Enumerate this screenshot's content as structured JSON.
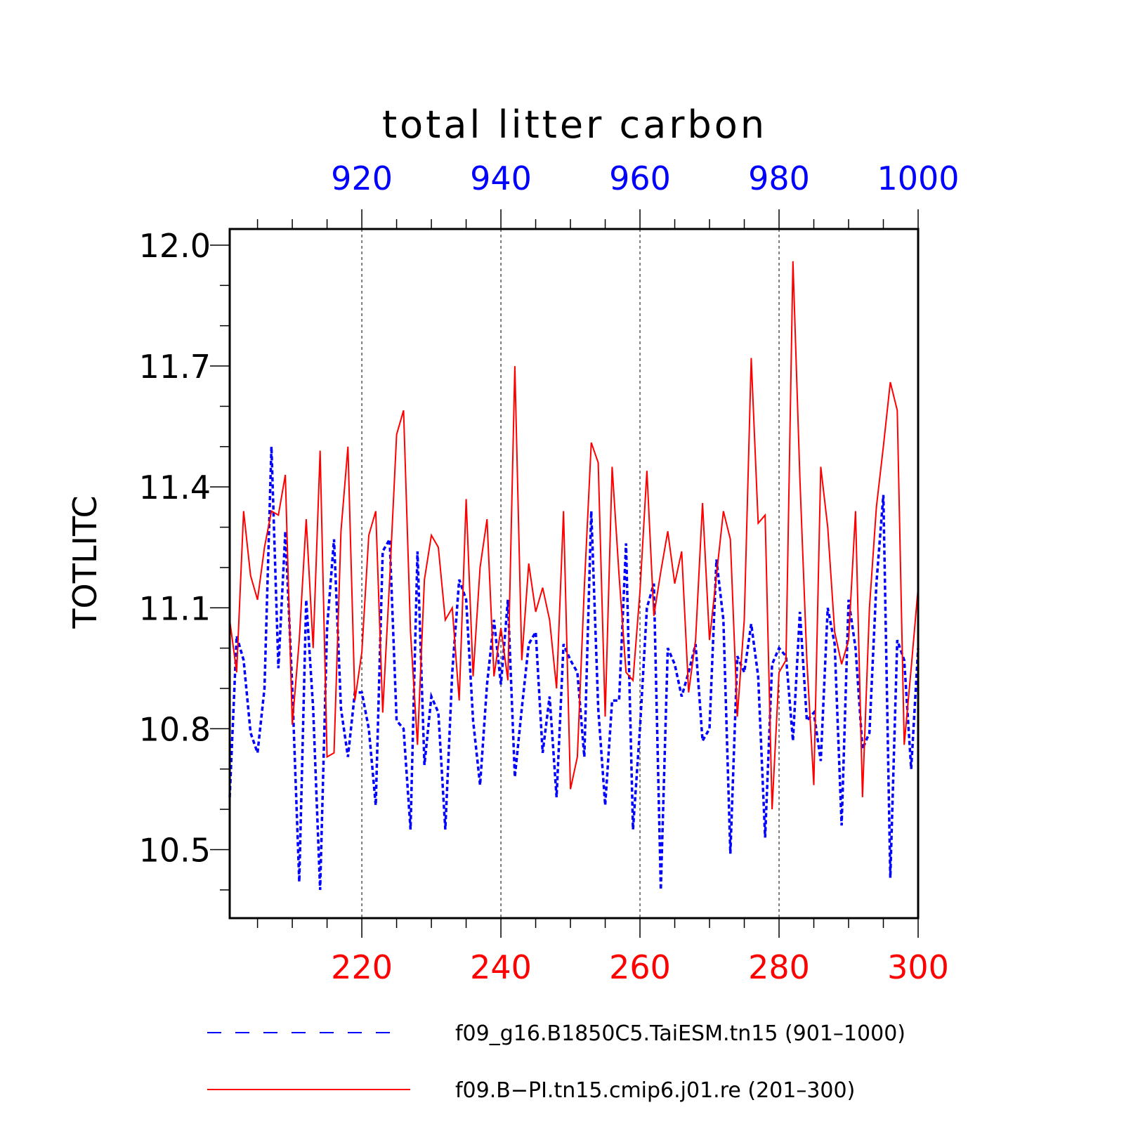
{
  "chart_data": {
    "type": "line",
    "title": "total litter carbon",
    "ylabel": "TOTLITC",
    "ylim": [
      10.33,
      12.04
    ],
    "y_ticks": [
      "10.5",
      "10.8",
      "11.1",
      "11.4",
      "11.7",
      "12.0"
    ],
    "y_tick_values": [
      10.5,
      10.8,
      11.1,
      11.4,
      11.7,
      12.0
    ],
    "x_bottom": {
      "range": [
        201,
        300
      ],
      "ticks": [
        "220",
        "240",
        "260",
        "280",
        "300"
      ],
      "tick_values": [
        220,
        240,
        260,
        280,
        300
      ],
      "color": "#ff0000"
    },
    "x_top": {
      "range": [
        901,
        1000
      ],
      "ticks": [
        "920",
        "940",
        "960",
        "980",
        "1000"
      ],
      "tick_values": [
        920,
        940,
        960,
        980,
        1000
      ],
      "color": "#0000ff"
    },
    "grid": "vertical dashed at major x ticks",
    "legend_position": "bottom",
    "series": [
      {
        "name": "f09_g16.B1850C5.TaiESM.tn15 (901–1000)",
        "color": "#0000ff",
        "style": "dashed",
        "axis": "top",
        "x_start": 901,
        "values": [
          10.63,
          11.03,
          10.97,
          10.79,
          10.74,
          10.9,
          11.5,
          10.95,
          11.29,
          10.9,
          10.42,
          11.12,
          10.85,
          10.4,
          11.05,
          11.27,
          10.85,
          10.73,
          10.89,
          10.89,
          10.8,
          10.61,
          11.24,
          11.27,
          10.82,
          10.8,
          10.55,
          11.24,
          10.71,
          10.88,
          10.84,
          10.55,
          10.94,
          11.17,
          11.12,
          10.82,
          10.66,
          10.91,
          11.07,
          10.91,
          11.12,
          10.68,
          10.85,
          11.01,
          11.04,
          10.74,
          10.88,
          10.63,
          11.01,
          10.97,
          10.94,
          10.73,
          11.34,
          10.85,
          10.61,
          10.87,
          10.87,
          11.26,
          10.55,
          10.8,
          11.1,
          11.16,
          10.4,
          11.0,
          10.96,
          10.88,
          10.94,
          11.01,
          10.77,
          10.8,
          11.22,
          11.07,
          10.49,
          10.98,
          10.94,
          11.06,
          10.93,
          10.53,
          10.96,
          11.0,
          10.98,
          10.77,
          11.09,
          10.82,
          10.84,
          10.72,
          11.1,
          11.01,
          10.56,
          11.12,
          11.0,
          10.75,
          10.79,
          11.16,
          11.38,
          10.43,
          11.02,
          10.97,
          10.7,
          11.0
        ]
      },
      {
        "name": "f09.B−PI.tn15.cmip6.j01.re (201–300)",
        "color": "#ff0000",
        "style": "solid",
        "axis": "bottom",
        "x_start": 201,
        "values": [
          11.07,
          10.94,
          11.34,
          11.18,
          11.12,
          11.25,
          11.34,
          11.33,
          11.43,
          10.81,
          11.02,
          11.32,
          11.0,
          11.49,
          10.73,
          10.74,
          11.29,
          11.5,
          10.87,
          10.99,
          11.28,
          11.34,
          10.84,
          11.17,
          11.53,
          11.59,
          11.04,
          10.76,
          11.17,
          11.28,
          11.25,
          11.07,
          11.1,
          10.87,
          11.37,
          10.93,
          11.2,
          11.32,
          10.93,
          11.05,
          10.92,
          11.7,
          10.97,
          11.21,
          11.09,
          11.15,
          11.07,
          10.9,
          11.34,
          10.65,
          10.73,
          11.15,
          11.51,
          11.46,
          10.83,
          11.45,
          11.18,
          10.94,
          10.92,
          11.14,
          11.44,
          11.08,
          11.19,
          11.29,
          11.16,
          11.24,
          10.89,
          11.02,
          11.36,
          11.02,
          11.18,
          11.34,
          11.27,
          10.83,
          11.07,
          11.72,
          11.31,
          11.33,
          10.6,
          10.94,
          10.97,
          11.96,
          11.42,
          10.97,
          10.66,
          11.45,
          11.3,
          11.04,
          10.96,
          11.02,
          11.34,
          10.63,
          11.1,
          11.35,
          11.5,
          11.66,
          11.59,
          10.76,
          10.95,
          11.15
        ]
      }
    ]
  }
}
